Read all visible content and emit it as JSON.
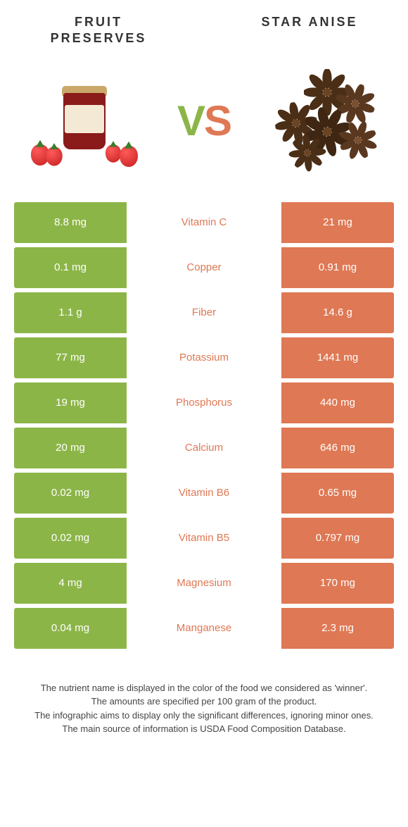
{
  "colors": {
    "left_color": "#8cb548",
    "right_color": "#df7854",
    "background": "#ffffff",
    "row_gap": "#ffffff"
  },
  "header": {
    "left_title": "Fruit preserves",
    "right_title": "Star anise"
  },
  "vs": {
    "v": "V",
    "s": "S"
  },
  "rows": [
    {
      "left": "8.8 mg",
      "label": "Vitamin C",
      "right": "21 mg",
      "winner": "right"
    },
    {
      "left": "0.1 mg",
      "label": "Copper",
      "right": "0.91 mg",
      "winner": "right"
    },
    {
      "left": "1.1 g",
      "label": "Fiber",
      "right": "14.6 g",
      "winner": "right"
    },
    {
      "left": "77 mg",
      "label": "Potassium",
      "right": "1441 mg",
      "winner": "right"
    },
    {
      "left": "19 mg",
      "label": "Phosphorus",
      "right": "440 mg",
      "winner": "right"
    },
    {
      "left": "20 mg",
      "label": "Calcium",
      "right": "646 mg",
      "winner": "right"
    },
    {
      "left": "0.02 mg",
      "label": "Vitamin B6",
      "right": "0.65 mg",
      "winner": "right"
    },
    {
      "left": "0.02 mg",
      "label": "Vitamin B5",
      "right": "0.797 mg",
      "winner": "right"
    },
    {
      "left": "4 mg",
      "label": "Magnesium",
      "right": "170 mg",
      "winner": "right"
    },
    {
      "left": "0.04 mg",
      "label": "Manganese",
      "right": "2.3 mg",
      "winner": "right"
    }
  ],
  "footer": {
    "l1": "The nutrient name is displayed in the color of the food we considered as 'winner'.",
    "l2": "The amounts are specified per 100 gram of the product.",
    "l3": "The infographic aims to display only the significant differences, ignoring minor ones.",
    "l4": "The main source of information is USDA Food Composition Database."
  }
}
